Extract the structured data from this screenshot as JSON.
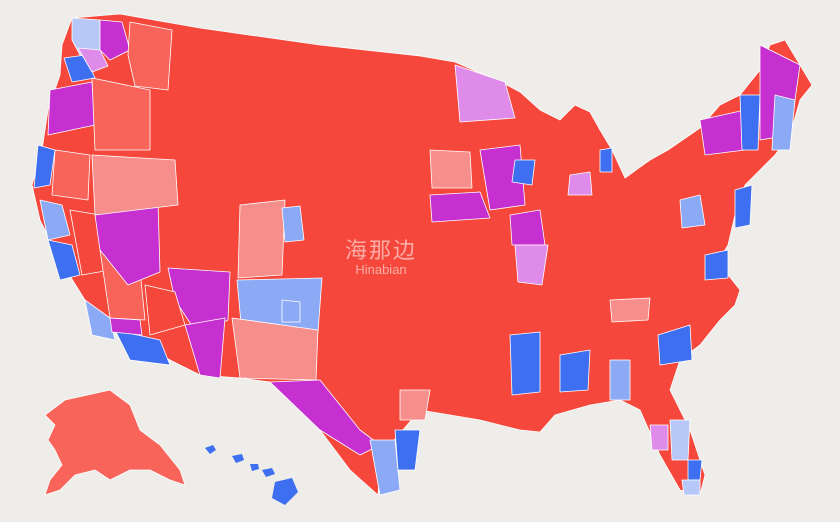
{
  "colors": {
    "background": "#efedea",
    "solid_red": "#f5473b",
    "lean_red": "#f8645a",
    "light_red": "#f68e8b",
    "purple": "#c62fd0",
    "light_purple": "#de8bea",
    "blue": "#3d6ff0",
    "light_blue": "#8ca9f6",
    "pale_blue": "#b7c8f8",
    "border": "#ffffff"
  },
  "map": {
    "regions": [
      {
        "name": "contiguous-us",
        "category": "solid_red"
      },
      {
        "name": "alaska",
        "category": "lean_red"
      },
      {
        "name": "hawaii",
        "category": "blue"
      }
    ]
  },
  "watermark": {
    "cn": "海那边",
    "en": "Hinabian"
  }
}
